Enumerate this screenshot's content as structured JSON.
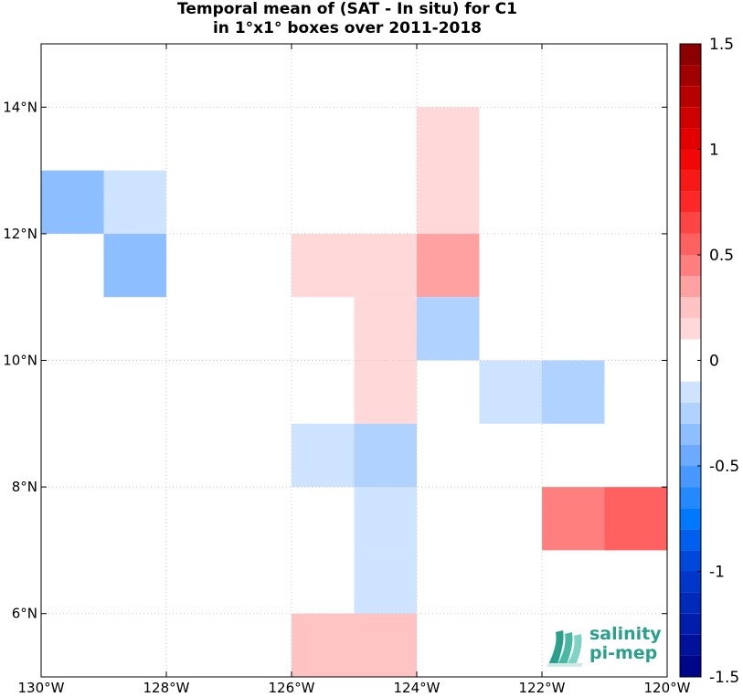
{
  "chart_data": {
    "type": "heatmap",
    "title_line1": "Temporal mean of (SAT - In situ) for C1",
    "title_line2": "in 1°x1° boxes over 2011-2018",
    "xlim": [
      -130,
      -120
    ],
    "ylim": [
      5,
      15
    ],
    "xticks": [
      {
        "value": -130,
        "label": "130°W"
      },
      {
        "value": -128,
        "label": "128°W"
      },
      {
        "value": -126,
        "label": "126°W"
      },
      {
        "value": -124,
        "label": "124°W"
      },
      {
        "value": -122,
        "label": "122°W"
      },
      {
        "value": -120,
        "label": "120°W"
      }
    ],
    "yticks": [
      {
        "value": 6,
        "label": "6°N"
      },
      {
        "value": 8,
        "label": "8°N"
      },
      {
        "value": 10,
        "label": "10°N"
      },
      {
        "value": 12,
        "label": "12°N"
      },
      {
        "value": 14,
        "label": "14°N"
      }
    ],
    "grid": true,
    "cells": [
      {
        "lon": -130,
        "lat": 12,
        "value": -0.35
      },
      {
        "lon": -129,
        "lat": 12,
        "value": -0.15
      },
      {
        "lon": -129,
        "lat": 11,
        "value": -0.35
      },
      {
        "lon": -124,
        "lat": 13,
        "value": 0.15
      },
      {
        "lon": -124,
        "lat": 12,
        "value": 0.15
      },
      {
        "lon": -126,
        "lat": 11,
        "value": 0.15
      },
      {
        "lon": -125,
        "lat": 11,
        "value": 0.15
      },
      {
        "lon": -124,
        "lat": 11,
        "value": 0.35
      },
      {
        "lon": -125,
        "lat": 10,
        "value": 0.15
      },
      {
        "lon": -124,
        "lat": 10,
        "value": -0.25
      },
      {
        "lon": -125,
        "lat": 9,
        "value": 0.15
      },
      {
        "lon": -123,
        "lat": 9,
        "value": -0.15
      },
      {
        "lon": -122,
        "lat": 9,
        "value": -0.25
      },
      {
        "lon": -126,
        "lat": 8,
        "value": -0.15
      },
      {
        "lon": -125,
        "lat": 8,
        "value": -0.25
      },
      {
        "lon": -125,
        "lat": 7,
        "value": -0.15
      },
      {
        "lon": -122,
        "lat": 7,
        "value": 0.45
      },
      {
        "lon": -121,
        "lat": 7,
        "value": 0.55
      },
      {
        "lon": -125,
        "lat": 6,
        "value": -0.15
      },
      {
        "lon": -126,
        "lat": 5,
        "value": 0.25
      },
      {
        "lon": -125,
        "lat": 5,
        "value": 0.25
      }
    ],
    "colorbar": {
      "range": [
        -1.5,
        1.5
      ],
      "ticks": [
        {
          "value": 1.5,
          "label": "1.5"
        },
        {
          "value": 1,
          "label": "1"
        },
        {
          "value": 0.5,
          "label": "0.5"
        },
        {
          "value": 0,
          "label": "0"
        },
        {
          "value": -0.5,
          "label": "-0.5"
        },
        {
          "value": -1,
          "label": "-1"
        },
        {
          "value": -1.5,
          "label": "-1.5"
        }
      ]
    },
    "colors": {
      "strong_positive": "#800000",
      "positive": "#ff3b3b",
      "light_positive": "#ffd8d8",
      "zero": "#ffffff",
      "light_negative": "#d6e8ff",
      "negative": "#1a7fff",
      "strong_negative": "#000080"
    }
  },
  "logo": {
    "line1": "salinity",
    "line2": "pi-mep",
    "color": "#2a9f8c"
  }
}
